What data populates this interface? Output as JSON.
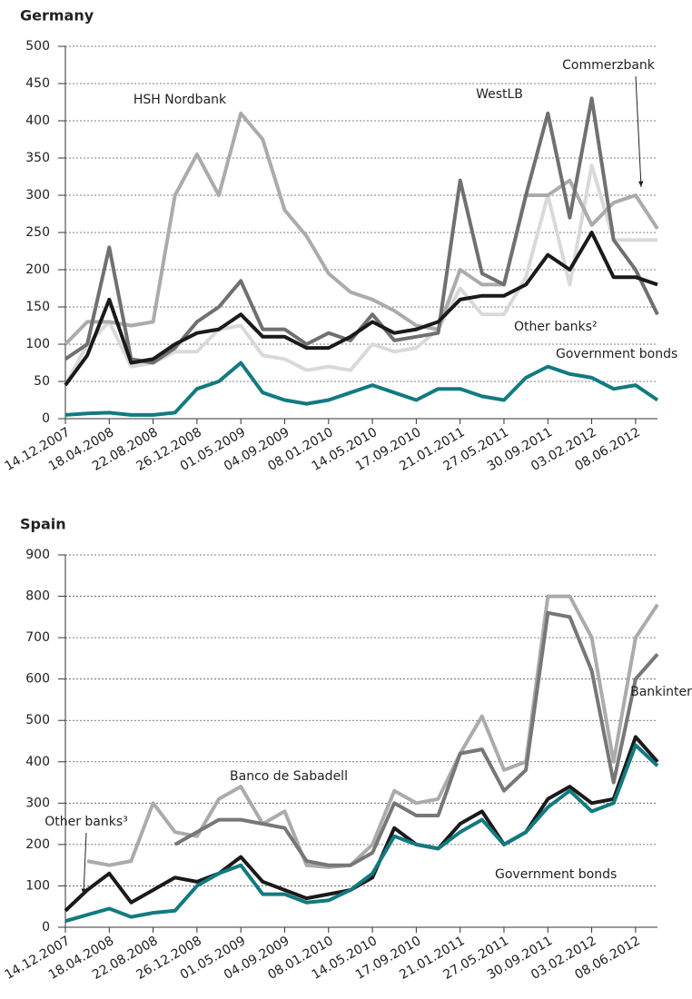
{
  "chart_data": [
    {
      "type": "line",
      "title": "Germany",
      "categories": [
        "14.12.2007",
        null,
        "18.04.2008",
        null,
        "22.08.2008",
        null,
        "26.12.2008",
        null,
        "01.05.2009",
        null,
        "04.09.2009",
        null,
        "08.01.2010",
        null,
        "14.05.2010",
        null,
        "17.09.2010",
        null,
        "21.01.2011",
        null,
        "27.05.2011",
        null,
        "30.09.2011",
        null,
        "03.02.2012",
        null,
        "08.06.2012",
        null
      ],
      "ylim": [
        0,
        500
      ],
      "yticks": [
        0,
        50,
        100,
        150,
        200,
        250,
        300,
        350,
        400,
        450,
        500
      ],
      "grid": true,
      "annotations": [
        "HSH Nordbank",
        "WestLB",
        "Commerzbank",
        "Other banks²",
        "Government bonds"
      ],
      "series": [
        {
          "name": "Commerzbank",
          "color": "#d9d9d9",
          "values": [
            45,
            100,
            130,
            70,
            75,
            90,
            90,
            120,
            125,
            85,
            80,
            65,
            70,
            65,
            100,
            90,
            95,
            120,
            175,
            140,
            140,
            190,
            300,
            180,
            340,
            240,
            240,
            240
          ]
        },
        {
          "name": "HSH Nordbank",
          "color": "#ababab",
          "values": [
            100,
            130,
            130,
            125,
            130,
            300,
            355,
            300,
            410,
            375,
            280,
            245,
            195,
            170,
            160,
            145,
            125,
            120,
            200,
            180,
            180,
            300,
            300,
            320,
            260,
            290,
            300,
            255
          ]
        },
        {
          "name": "WestLB",
          "color": "#707070",
          "values": [
            80,
            100,
            230,
            80,
            75,
            95,
            130,
            150,
            185,
            120,
            120,
            100,
            115,
            105,
            140,
            105,
            110,
            115,
            320,
            195,
            180,
            300,
            410,
            270,
            430,
            240,
            200,
            140
          ]
        },
        {
          "name": "Other banks²",
          "color": "#1a1a1a",
          "values": [
            45,
            85,
            160,
            75,
            80,
            100,
            115,
            120,
            140,
            110,
            110,
            95,
            95,
            110,
            130,
            115,
            120,
            130,
            160,
            165,
            165,
            180,
            220,
            200,
            250,
            190,
            190,
            180
          ]
        },
        {
          "name": "Government bonds",
          "color": "#127a80",
          "values": [
            5,
            7,
            8,
            5,
            5,
            8,
            40,
            50,
            75,
            35,
            25,
            20,
            25,
            35,
            45,
            35,
            25,
            40,
            40,
            30,
            25,
            55,
            70,
            60,
            55,
            40,
            45,
            25
          ]
        }
      ]
    },
    {
      "type": "line",
      "title": "Spain",
      "categories": [
        "14.12.2007",
        null,
        "18.04.2008",
        null,
        "22.08.2008",
        null,
        "26.12.2008",
        null,
        "01.05.2009",
        null,
        "04.09.2009",
        null,
        "08.01.2010",
        null,
        "14.05.2010",
        null,
        "17.09.2010",
        null,
        "21.01.2011",
        null,
        "27.05.2011",
        null,
        "30.09.2011",
        null,
        "03.02.2012",
        null,
        "08.06.2012",
        null
      ],
      "ylim": [
        0,
        900
      ],
      "yticks": [
        0,
        100,
        200,
        300,
        400,
        500,
        600,
        700,
        800,
        900
      ],
      "grid": true,
      "annotations": [
        "Other banks³",
        "Banco de Sabadell",
        "Bankinter",
        "Government bonds"
      ],
      "series": [
        {
          "name": "Banco de Sabadell",
          "color": "#ababab",
          "values": [
            null,
            160,
            150,
            160,
            300,
            230,
            220,
            310,
            340,
            250,
            280,
            150,
            145,
            150,
            200,
            330,
            300,
            310,
            420,
            510,
            380,
            400,
            800,
            800,
            700,
            400,
            700,
            780
          ]
        },
        {
          "name": "Bankinter",
          "color": "#777777",
          "values": [
            null,
            null,
            null,
            null,
            null,
            200,
            230,
            260,
            260,
            250,
            240,
            160,
            150,
            150,
            180,
            300,
            270,
            270,
            420,
            430,
            330,
            380,
            760,
            750,
            620,
            350,
            600,
            660
          ]
        },
        {
          "name": "Other banks³",
          "color": "#1a1a1a",
          "values": [
            40,
            90,
            130,
            60,
            90,
            120,
            110,
            130,
            170,
            110,
            90,
            70,
            80,
            90,
            120,
            240,
            200,
            190,
            250,
            280,
            200,
            230,
            310,
            340,
            300,
            310,
            460,
            400
          ]
        },
        {
          "name": "Government bonds",
          "color": "#127a80",
          "values": [
            15,
            30,
            45,
            25,
            35,
            40,
            100,
            130,
            150,
            80,
            80,
            60,
            65,
            90,
            130,
            220,
            200,
            190,
            230,
            260,
            200,
            230,
            290,
            330,
            280,
            300,
            440,
            390
          ]
        }
      ]
    }
  ]
}
